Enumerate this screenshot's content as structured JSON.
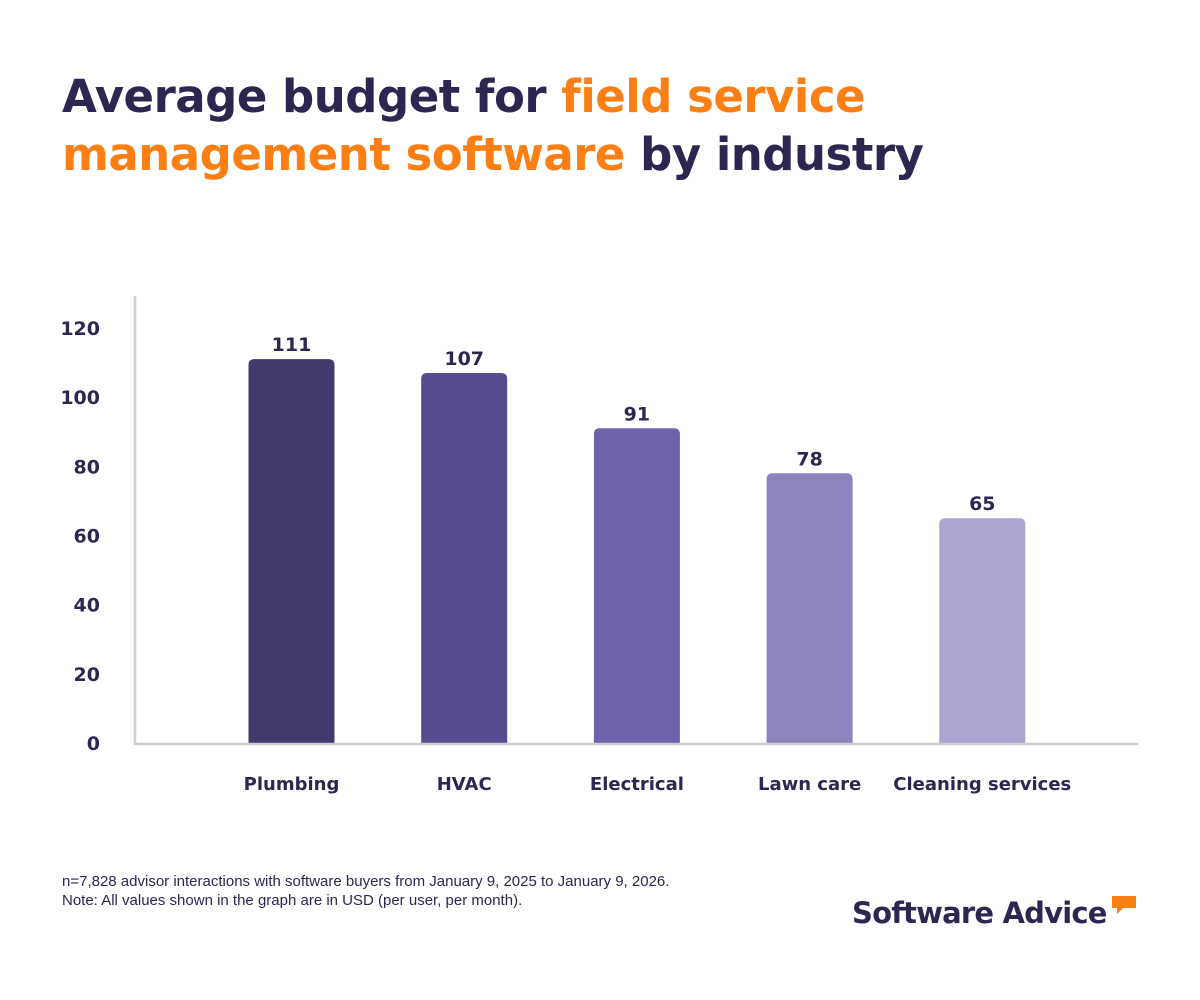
{
  "title": {
    "part1": "Average budget for ",
    "highlight": "field service management software",
    "part2": " by industry",
    "highlight_color": "#fb7f14",
    "text_color": "#2b2750"
  },
  "chart_data": {
    "type": "bar",
    "title": "Average budget for field service management software by industry",
    "categories": [
      "Plumbing",
      "HVAC",
      "Electrical",
      "Lawn care",
      "Cleaning services"
    ],
    "values": [
      111,
      107,
      91,
      78,
      65
    ],
    "data_labels": [
      "111",
      "107",
      "91",
      "78",
      "65"
    ],
    "bar_colors": [
      "#433a6e",
      "#574c90",
      "#6d62ac",
      "#8b84bd",
      "#aaa4d0"
    ],
    "xlabel": "",
    "ylabel": "",
    "ylim": [
      0,
      120
    ],
    "yticks": [
      0,
      20,
      40,
      60,
      80,
      100,
      120
    ],
    "ytick_labels": [
      "0",
      "20",
      "40",
      "60",
      "80",
      "100",
      "120"
    ],
    "grid": false,
    "legend": "none",
    "units": "USD per user, per month"
  },
  "footnote": {
    "line1": "n=7,828 advisor interactions with software buyers from January 9, 2025 to January 9, 2026.",
    "line2": "Note: All values shown in the graph are in USD (per user, per month)."
  },
  "brand": {
    "name": "Software Advice",
    "icon": "speech-bubble-icon",
    "icon_color": "#fb7f14"
  }
}
